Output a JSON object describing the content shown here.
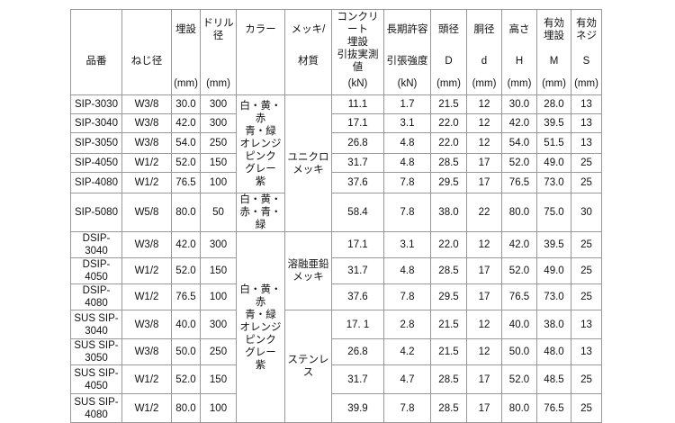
{
  "table": {
    "header": [
      {
        "mid": [
          "品番"
        ]
      },
      {
        "mid": [
          "ねじ径"
        ]
      },
      {
        "top": [
          "埋設"
        ],
        "unit": "(mm)"
      },
      {
        "top": [
          "ドリル",
          "径"
        ],
        "unit": "(mm)"
      },
      {
        "top": [
          "カラー"
        ]
      },
      {
        "top": [
          "メッキ/"
        ],
        "mid": [
          "材質"
        ]
      },
      {
        "top": [
          "コンクリート",
          "埋設"
        ],
        "mid": [
          "引抜実測値"
        ],
        "unit": "(kN)"
      },
      {
        "top": [
          "長期許容"
        ],
        "mid": [
          "引張強度"
        ],
        "unit": "(kN)"
      },
      {
        "top": [
          "頭径"
        ],
        "mid": [
          "D"
        ],
        "unit": "(mm)"
      },
      {
        "top": [
          "胴径"
        ],
        "mid": [
          "d"
        ],
        "unit": "(mm)"
      },
      {
        "top": [
          "高さ"
        ],
        "mid": [
          "H"
        ],
        "unit": "(mm)"
      },
      {
        "top": [
          "有効",
          "埋設"
        ],
        "mid": [
          "M"
        ],
        "unit": "(mm)"
      },
      {
        "top": [
          "有効",
          "ネジ"
        ],
        "mid": [
          "S"
        ],
        "unit": "(mm)"
      }
    ],
    "rows": [
      [
        [
          "SIP-3030"
        ],
        "W3/8",
        "30.0",
        "300",
        "11.1",
        "1.7",
        "21.5",
        "12",
        "30.0",
        "28.0",
        "13"
      ],
      [
        [
          "SIP-3040"
        ],
        "W3/8",
        "42.0",
        "300",
        "17.1",
        "3.1",
        "22.0",
        "12",
        "42.0",
        "39.5",
        "13"
      ],
      [
        [
          "SIP-3050"
        ],
        "W3/8",
        "54.0",
        "250",
        "26.8",
        "4.8",
        "22.0",
        "12",
        "54.0",
        "51.5",
        "13"
      ],
      [
        [
          "SIP-4050"
        ],
        "W1/2",
        "52.0",
        "150",
        "31.7",
        "4.8",
        "28.5",
        "17",
        "52.0",
        "49.0",
        "25"
      ],
      [
        [
          "SIP-4080"
        ],
        "W1/2",
        "76.5",
        "100",
        "37.6",
        "7.8",
        "29.5",
        "17",
        "76.5",
        "73.0",
        "25"
      ],
      [
        [
          "SIP-5080"
        ],
        "W5/8",
        "80.0",
        "50",
        "58.4",
        "7.8",
        "38.0",
        "22",
        "80.0",
        "75.0",
        "30"
      ],
      [
        [
          "DSIP-3040"
        ],
        "W3/8",
        "42.0",
        "300",
        "17.1",
        "3.1",
        "22.0",
        "12",
        "42.0",
        "39.5",
        "25"
      ],
      [
        [
          "DSIP-4050"
        ],
        "W1/2",
        "52.0",
        "150",
        "31.7",
        "4.8",
        "28.5",
        "17",
        "52.0",
        "49.0",
        "25"
      ],
      [
        [
          "DSIP-4080"
        ],
        "W1/2",
        "76.5",
        "100",
        "37.6",
        "7.8",
        "29.5",
        "17",
        "76.5",
        "73.0",
        "25"
      ],
      [
        [
          "SUS SIP-",
          "3040"
        ],
        "W3/8",
        "40.0",
        "300",
        "17. 1",
        "2.8",
        "21.5",
        "12",
        "40.0",
        "38.0",
        "13"
      ],
      [
        [
          "SUS SIP-",
          "3050"
        ],
        "W3/8",
        "50.0",
        "250",
        "26.8",
        "4.2",
        "21.5",
        "12",
        "50.0",
        "48.0",
        "13"
      ],
      [
        [
          "SUS SIP-",
          "4050"
        ],
        "W1/2",
        "52.0",
        "150",
        "31.7",
        "4.7",
        "28.5",
        "17",
        "52.0",
        "48.5",
        "25"
      ],
      [
        [
          "SUS SIP-",
          "4080"
        ],
        "W1/2",
        "80.0",
        "100",
        "39.9",
        "7.8",
        "28.5",
        "17",
        "80.0",
        "76.5",
        "25"
      ]
    ],
    "colors": [
      [
        "白・黄・赤",
        "青・緑",
        "オレンジ",
        "ピンク",
        "グレー",
        "紫"
      ],
      [
        "白・黄・",
        "赤・青・緑"
      ],
      [
        "白・黄・赤",
        "青・緑",
        "オレンジ",
        "ピンク",
        "グレー",
        "紫"
      ]
    ],
    "materials": [
      [
        "ユニクロ",
        "メッキ"
      ],
      [
        "溶融亜鉛",
        "メッキ"
      ],
      [
        "ステンレス"
      ]
    ]
  }
}
